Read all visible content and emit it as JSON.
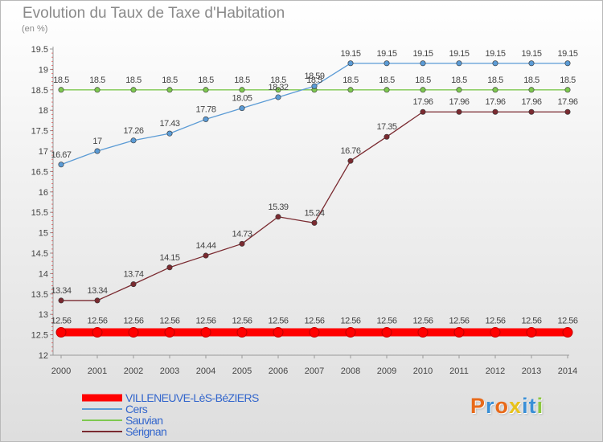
{
  "title": "Evolution du Taux de Taxe d'Habitation",
  "subtitle": "(en %)",
  "logo": {
    "text": "Proxiti",
    "colors": [
      "#e86a1a",
      "#3a8fd6",
      "#e86a1a",
      "#e8c21a",
      "#3a8fd6",
      "#3a8fd6",
      "#8cc63f"
    ]
  },
  "chart_data": {
    "type": "line",
    "x": [
      2000,
      2001,
      2002,
      2003,
      2004,
      2005,
      2006,
      2007,
      2008,
      2009,
      2010,
      2011,
      2012,
      2013,
      2014
    ],
    "y_ticks": [
      "12",
      "12.5",
      "13",
      "13.5",
      "14",
      "14.5",
      "15",
      "15.5",
      "16",
      "16.5",
      "17",
      "17.5",
      "18",
      "18.5",
      "19",
      "19.5"
    ],
    "ylim": [
      12,
      19.5
    ],
    "grid": false,
    "legend_position": "bottom-left",
    "series": [
      {
        "name": "VILLENEUVE-LèS-BéZIERS",
        "color": "#ff0000",
        "values": [
          12.56,
          12.56,
          12.56,
          12.56,
          12.56,
          12.56,
          12.56,
          12.56,
          12.56,
          12.56,
          12.56,
          12.56,
          12.56,
          12.56,
          12.56
        ],
        "labels": [
          "12.56",
          "12.56",
          "12.56",
          "12.56",
          "12.56",
          "12.56",
          "12.56",
          "12.56",
          "12.56",
          "12.56",
          "12.56",
          "12.56",
          "12.56",
          "12.56",
          "12.56"
        ]
      },
      {
        "name": "Cers",
        "color": "#5b9bd5",
        "values": [
          16.67,
          17,
          17.26,
          17.43,
          17.78,
          18.05,
          18.32,
          18.59,
          19.15,
          19.15,
          19.15,
          19.15,
          19.15,
          19.15,
          19.15
        ],
        "labels": [
          "16.67",
          "17",
          "17.26",
          "17.43",
          "17.78",
          "18.05",
          "18.32",
          "18.59",
          "19.15",
          "19.15",
          "19.15",
          "19.15",
          "19.15",
          "19.15",
          "19.15"
        ]
      },
      {
        "name": "Sauvian",
        "color": "#7ec850",
        "values": [
          18.5,
          18.5,
          18.5,
          18.5,
          18.5,
          18.5,
          18.5,
          18.5,
          18.5,
          18.5,
          18.5,
          18.5,
          18.5,
          18.5,
          18.5
        ],
        "labels": [
          "18.5",
          "18.5",
          "18.5",
          "18.5",
          "18.5",
          "18.5",
          "18.5",
          "18.5",
          "18.5",
          "18.5",
          "18.5",
          "18.5",
          "18.5",
          "18.5",
          "18.5"
        ]
      },
      {
        "name": "Sérignan",
        "color": "#7a2a30",
        "values": [
          13.34,
          13.34,
          13.74,
          14.15,
          14.44,
          14.73,
          15.39,
          15.24,
          16.76,
          17.35,
          17.96,
          17.96,
          17.96,
          17.96,
          17.96
        ],
        "labels": [
          "13.34",
          "13.34",
          "13.74",
          "14.15",
          "14.44",
          "14.73",
          "15.39",
          "15.24",
          "16.76",
          "17.35",
          "17.96",
          "17.96",
          "17.96",
          "17.96",
          "17.96"
        ]
      }
    ]
  }
}
